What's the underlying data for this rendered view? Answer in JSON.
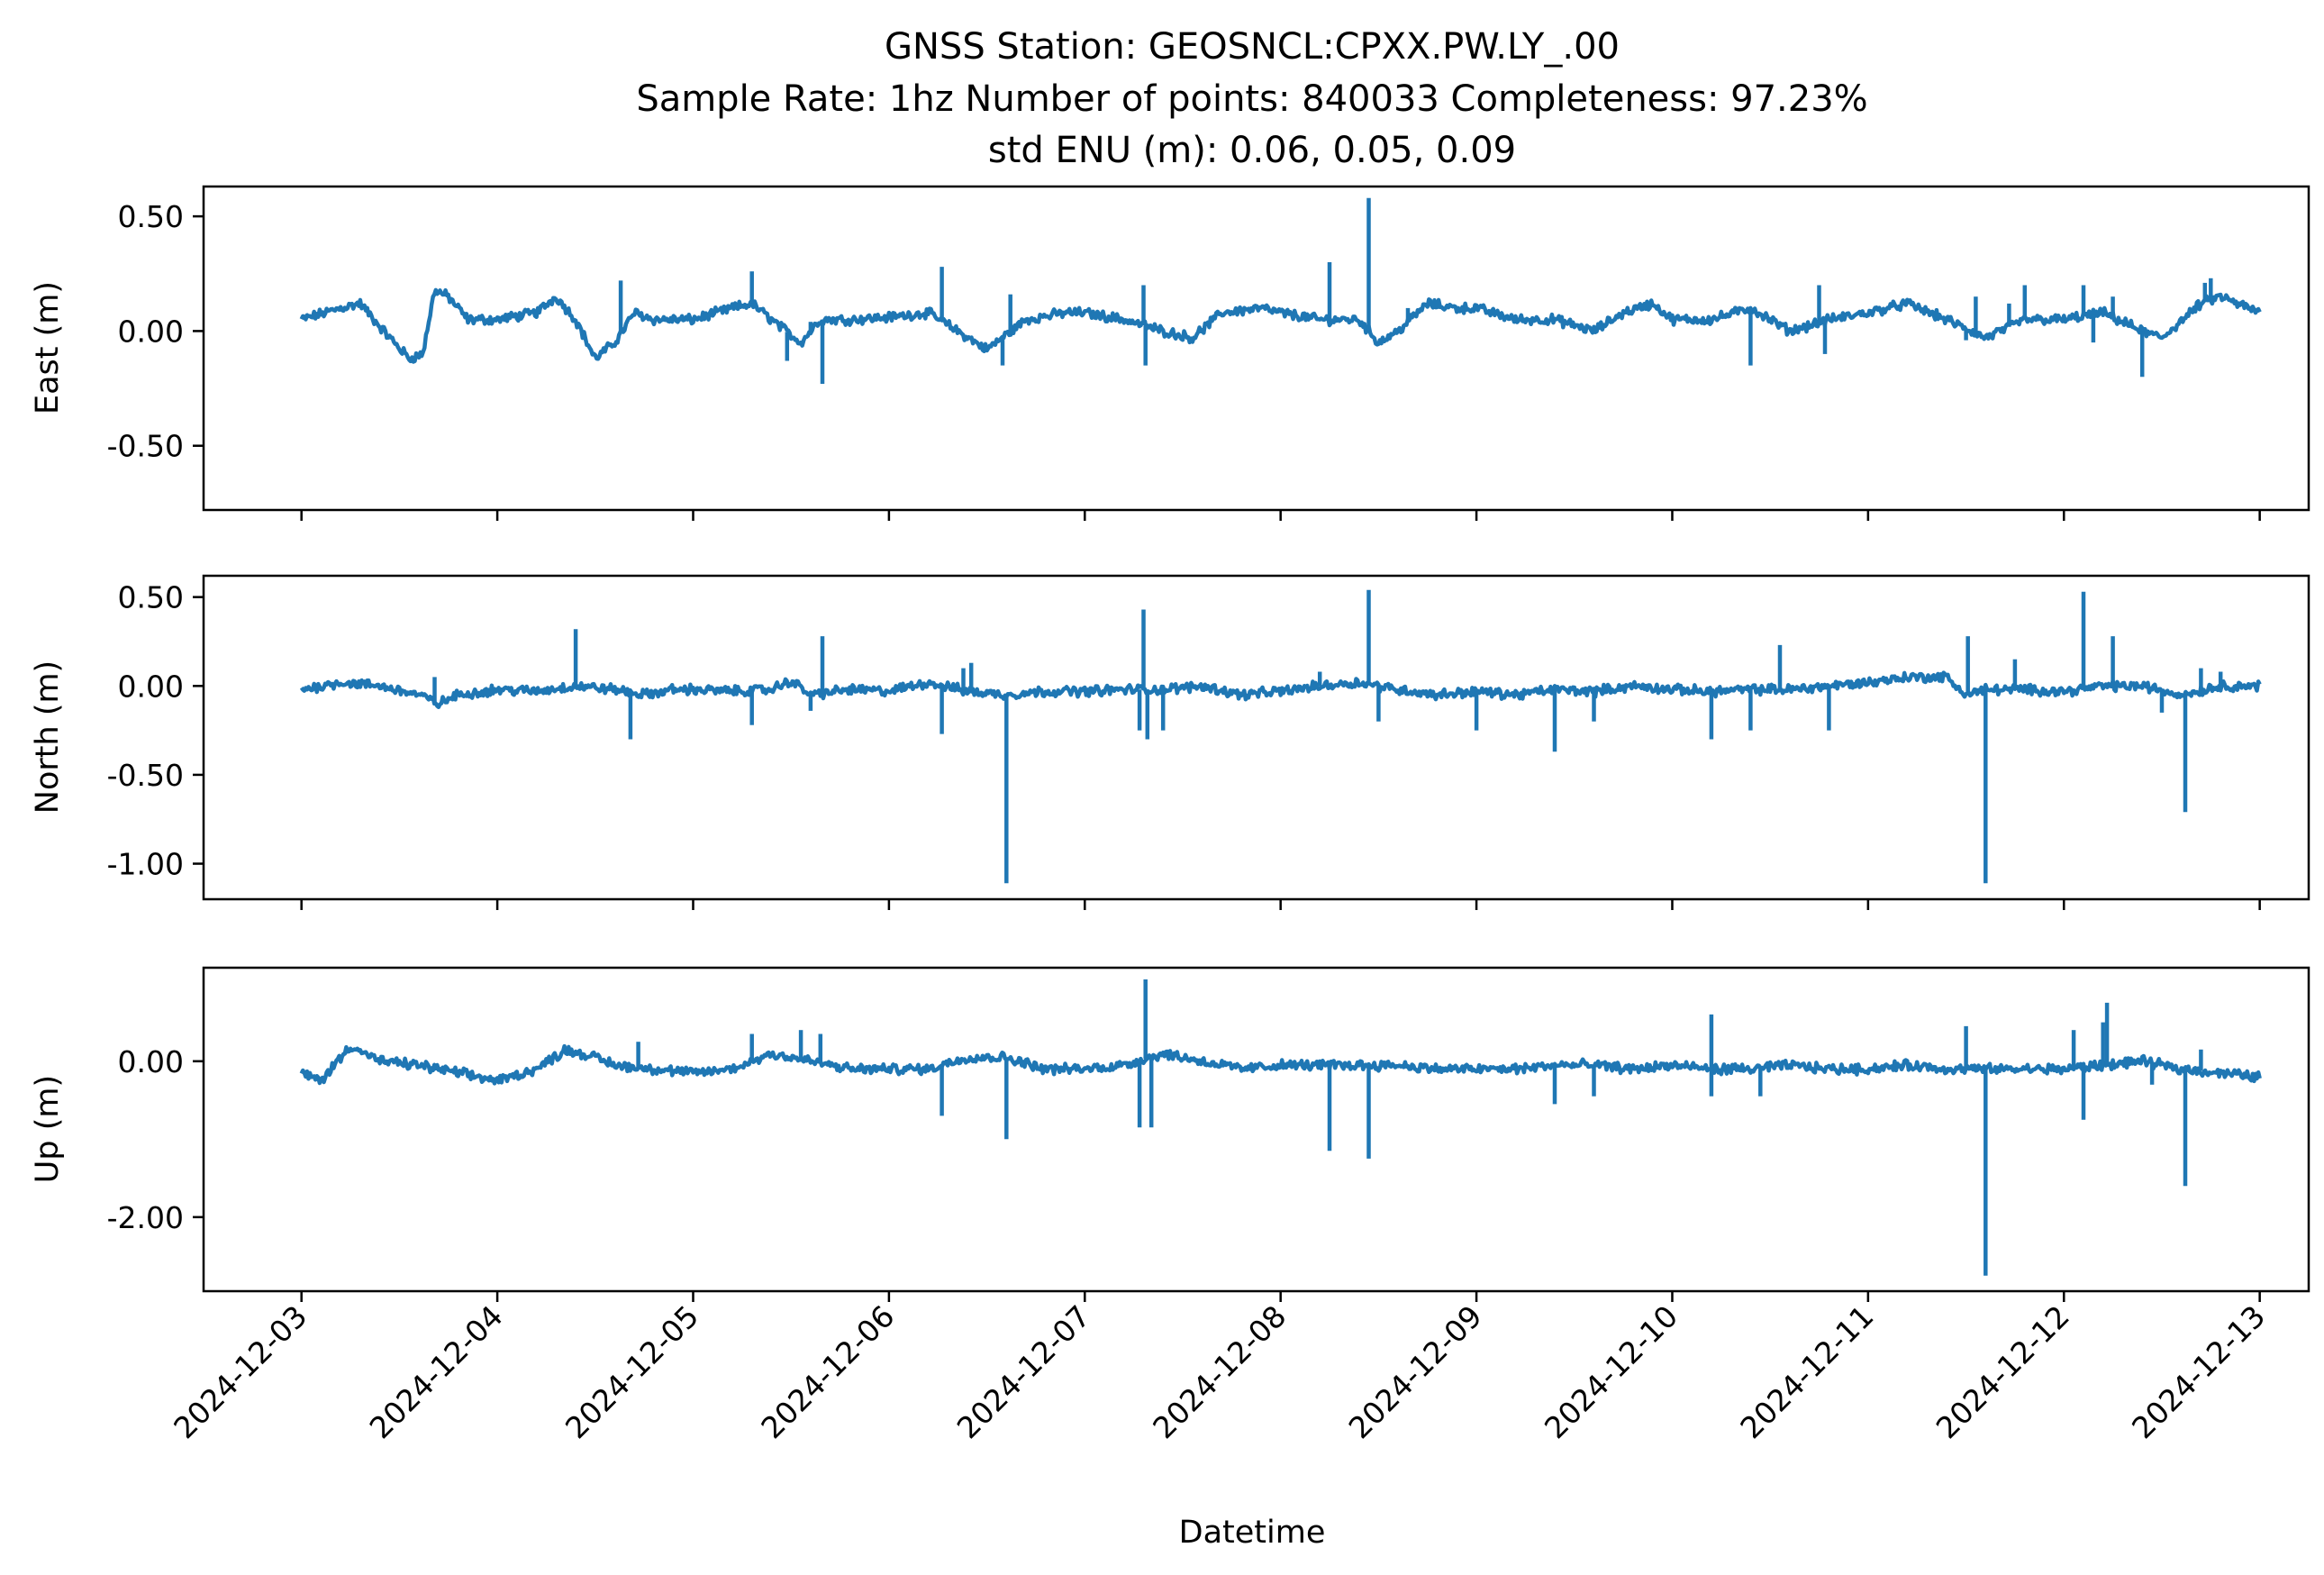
{
  "chart_data": {
    "type": "line",
    "title_lines": [
      "GNSS Station: GEOSNCL:CPXX.PW.LY_.00",
      "Sample Rate: 1hz   Number of points: 840033    Completeness:  97.23%",
      "std ENU (m):  0.06, 0.05, 0.09"
    ],
    "xlabel": "Datetime",
    "x_ticks": [
      "2024-12-03",
      "2024-12-04",
      "2024-12-05",
      "2024-12-06",
      "2024-12-07",
      "2024-12-08",
      "2024-12-09",
      "2024-12-10",
      "2024-12-11",
      "2024-12-12",
      "2024-12-13"
    ],
    "x_range_days": [
      "2024-12-02 12:00",
      "2024-12-13 06:00"
    ],
    "grid": false,
    "legend": "none",
    "line_color": "#1f77b4",
    "panels": [
      {
        "ylabel": "East (m)",
        "ylim": [
          -0.78,
          0.63
        ],
        "y_ticks": [
          0.5,
          0.0,
          -0.5
        ],
        "y_tick_labels": [
          "0.50",
          "0.00",
          "-0.50"
        ],
        "baseline": [
          [
            0.0,
            0.05
          ],
          [
            0.2,
            0.1
          ],
          [
            0.3,
            0.12
          ],
          [
            0.42,
            0.0
          ],
          [
            0.55,
            -0.12
          ],
          [
            0.62,
            -0.1
          ],
          [
            0.68,
            0.18
          ],
          [
            0.75,
            0.15
          ],
          [
            0.85,
            0.05
          ],
          [
            1.0,
            0.05
          ],
          [
            1.2,
            0.08
          ],
          [
            1.3,
            0.15
          ],
          [
            1.4,
            0.05
          ],
          [
            1.5,
            -0.12
          ],
          [
            1.6,
            -0.05
          ],
          [
            1.7,
            0.08
          ],
          [
            1.8,
            0.05
          ],
          [
            2.0,
            0.05
          ],
          [
            2.2,
            0.1
          ],
          [
            2.3,
            0.12
          ],
          [
            2.4,
            0.05
          ],
          [
            2.55,
            -0.05
          ],
          [
            2.65,
            0.05
          ],
          [
            2.8,
            0.05
          ],
          [
            3.0,
            0.06
          ],
          [
            3.2,
            0.08
          ],
          [
            3.35,
            0.0
          ],
          [
            3.5,
            -0.08
          ],
          [
            3.7,
            0.05
          ],
          [
            3.9,
            0.08
          ],
          [
            4.0,
            0.08
          ],
          [
            4.2,
            0.05
          ],
          [
            4.4,
            0.0
          ],
          [
            4.55,
            -0.03
          ],
          [
            4.7,
            0.08
          ],
          [
            4.9,
            0.1
          ],
          [
            5.0,
            0.08
          ],
          [
            5.2,
            0.05
          ],
          [
            5.4,
            0.05
          ],
          [
            5.5,
            -0.05
          ],
          [
            5.6,
            0.0
          ],
          [
            5.75,
            0.12
          ],
          [
            5.9,
            0.1
          ],
          [
            6.0,
            0.1
          ],
          [
            6.2,
            0.05
          ],
          [
            6.4,
            0.05
          ],
          [
            6.6,
            0.0
          ],
          [
            6.75,
            0.08
          ],
          [
            6.9,
            0.12
          ],
          [
            7.0,
            0.05
          ],
          [
            7.2,
            0.05
          ],
          [
            7.4,
            0.1
          ],
          [
            7.6,
            0.0
          ],
          [
            7.8,
            0.05
          ],
          [
            8.0,
            0.08
          ],
          [
            8.2,
            0.12
          ],
          [
            8.4,
            0.05
          ],
          [
            8.6,
            -0.03
          ],
          [
            8.8,
            0.05
          ],
          [
            9.0,
            0.05
          ],
          [
            9.2,
            0.08
          ],
          [
            9.4,
            0.0
          ],
          [
            9.5,
            -0.03
          ],
          [
            9.7,
            0.12
          ],
          [
            9.8,
            0.15
          ],
          [
            10.0,
            0.08
          ]
        ],
        "spikes": [
          [
            1.63,
            0.22
          ],
          [
            2.3,
            0.26
          ],
          [
            2.48,
            -0.13
          ],
          [
            2.6,
            0.04
          ],
          [
            2.66,
            -0.23
          ],
          [
            3.27,
            0.28
          ],
          [
            3.58,
            -0.15
          ],
          [
            3.62,
            0.16
          ],
          [
            4.3,
            0.2
          ],
          [
            4.31,
            -0.15
          ],
          [
            5.25,
            0.3
          ],
          [
            5.45,
            0.58
          ],
          [
            5.65,
            0.1
          ],
          [
            7.4,
            -0.15
          ],
          [
            7.75,
            0.2
          ],
          [
            7.78,
            -0.1
          ],
          [
            8.5,
            -0.04
          ],
          [
            8.55,
            0.15
          ],
          [
            8.72,
            0.12
          ],
          [
            8.8,
            0.2
          ],
          [
            9.1,
            0.2
          ],
          [
            9.15,
            -0.05
          ],
          [
            9.25,
            0.15
          ],
          [
            9.4,
            -0.2
          ],
          [
            9.43,
            0.0
          ],
          [
            9.72,
            0.21
          ],
          [
            9.75,
            0.23
          ]
        ]
      },
      {
        "ylabel": "North (m)",
        "ylim": [
          -1.2,
          0.62
        ],
        "y_ticks": [
          0.5,
          0.0,
          -0.5,
          -1.0
        ],
        "y_tick_labels": [
          "0.50",
          "0.00",
          "-0.50",
          "-1.00"
        ],
        "baseline": [
          [
            0.0,
            -0.02
          ],
          [
            0.2,
            0.02
          ],
          [
            0.4,
            0.0
          ],
          [
            0.6,
            -0.05
          ],
          [
            0.7,
            -0.1
          ],
          [
            0.8,
            -0.05
          ],
          [
            1.0,
            -0.02
          ],
          [
            1.2,
            -0.03
          ],
          [
            1.4,
            0.0
          ],
          [
            1.6,
            -0.02
          ],
          [
            1.75,
            -0.05
          ],
          [
            1.9,
            -0.02
          ],
          [
            2.0,
            -0.02
          ],
          [
            2.2,
            -0.03
          ],
          [
            2.4,
            -0.02
          ],
          [
            2.5,
            0.03
          ],
          [
            2.6,
            -0.05
          ],
          [
            2.8,
            -0.02
          ],
          [
            3.0,
            -0.03
          ],
          [
            3.2,
            0.02
          ],
          [
            3.4,
            -0.03
          ],
          [
            3.6,
            -0.05
          ],
          [
            3.8,
            -0.03
          ],
          [
            4.0,
            -0.03
          ],
          [
            4.2,
            -0.02
          ],
          [
            4.4,
            -0.02
          ],
          [
            4.6,
            0.0
          ],
          [
            4.8,
            -0.05
          ],
          [
            5.0,
            -0.03
          ],
          [
            5.2,
            0.0
          ],
          [
            5.4,
            0.02
          ],
          [
            5.6,
            -0.02
          ],
          [
            5.8,
            -0.05
          ],
          [
            6.0,
            -0.03
          ],
          [
            6.2,
            -0.05
          ],
          [
            6.4,
            -0.02
          ],
          [
            6.6,
            -0.03
          ],
          [
            6.8,
            0.0
          ],
          [
            7.0,
            -0.02
          ],
          [
            7.2,
            -0.03
          ],
          [
            7.4,
            -0.02
          ],
          [
            7.6,
            -0.02
          ],
          [
            7.8,
            0.0
          ],
          [
            8.0,
            0.02
          ],
          [
            8.2,
            0.05
          ],
          [
            8.4,
            0.05
          ],
          [
            8.5,
            -0.05
          ],
          [
            8.6,
            -0.02
          ],
          [
            8.8,
            -0.02
          ],
          [
            9.0,
            -0.03
          ],
          [
            9.2,
            0.0
          ],
          [
            9.4,
            0.0
          ],
          [
            9.6,
            -0.05
          ],
          [
            9.8,
            0.0
          ],
          [
            10.0,
            0.0
          ]
        ],
        "spikes": [
          [
            0.68,
            0.05
          ],
          [
            1.4,
            0.32
          ],
          [
            1.68,
            -0.3
          ],
          [
            2.3,
            -0.22
          ],
          [
            2.6,
            -0.14
          ],
          [
            2.66,
            0.28
          ],
          [
            3.27,
            -0.27
          ],
          [
            3.38,
            0.1
          ],
          [
            3.42,
            0.13
          ],
          [
            3.6,
            -1.11
          ],
          [
            4.28,
            -0.25
          ],
          [
            4.3,
            0.43
          ],
          [
            4.32,
            -0.3
          ],
          [
            4.4,
            -0.25
          ],
          [
            5.2,
            0.08
          ],
          [
            5.45,
            0.54
          ],
          [
            5.5,
            -0.2
          ],
          [
            6.0,
            -0.25
          ],
          [
            6.4,
            -0.37
          ],
          [
            6.6,
            -0.2
          ],
          [
            7.2,
            -0.3
          ],
          [
            7.4,
            -0.25
          ],
          [
            7.55,
            0.23
          ],
          [
            7.8,
            -0.25
          ],
          [
            8.51,
            0.28
          ],
          [
            8.6,
            -1.11
          ],
          [
            8.75,
            0.15
          ],
          [
            9.1,
            0.53
          ],
          [
            9.25,
            0.28
          ],
          [
            9.5,
            -0.15
          ],
          [
            9.62,
            -0.71
          ],
          [
            9.7,
            0.1
          ],
          [
            9.8,
            0.08
          ]
        ]
      },
      {
        "ylabel": "Up (m)",
        "ylim": [
          -2.95,
          1.2
        ],
        "y_ticks": [
          0.0,
          -2.0
        ],
        "y_tick_labels": [
          "0.00",
          "-2.00"
        ],
        "baseline": [
          [
            0.0,
            -0.15
          ],
          [
            0.1,
            -0.25
          ],
          [
            0.25,
            0.2
          ],
          [
            0.4,
            0.0
          ],
          [
            0.6,
            -0.05
          ],
          [
            0.8,
            -0.15
          ],
          [
            1.0,
            -0.25
          ],
          [
            1.2,
            -0.1
          ],
          [
            1.35,
            0.15
          ],
          [
            1.5,
            0.05
          ],
          [
            1.6,
            -0.05
          ],
          [
            1.8,
            -0.1
          ],
          [
            2.0,
            -0.15
          ],
          [
            2.2,
            -0.1
          ],
          [
            2.4,
            0.1
          ],
          [
            2.6,
            0.0
          ],
          [
            2.8,
            -0.1
          ],
          [
            3.0,
            -0.1
          ],
          [
            3.2,
            -0.1
          ],
          [
            3.4,
            0.05
          ],
          [
            3.6,
            0.05
          ],
          [
            3.8,
            -0.1
          ],
          [
            4.0,
            -0.1
          ],
          [
            4.2,
            -0.05
          ],
          [
            4.4,
            0.1
          ],
          [
            4.6,
            0.0
          ],
          [
            4.8,
            -0.1
          ],
          [
            5.0,
            -0.05
          ],
          [
            5.2,
            -0.05
          ],
          [
            5.4,
            -0.05
          ],
          [
            5.6,
            -0.05
          ],
          [
            5.8,
            -0.1
          ],
          [
            6.0,
            -0.1
          ],
          [
            6.2,
            -0.1
          ],
          [
            6.4,
            -0.05
          ],
          [
            6.6,
            -0.05
          ],
          [
            6.8,
            -0.1
          ],
          [
            7.0,
            -0.05
          ],
          [
            7.2,
            -0.1
          ],
          [
            7.4,
            -0.1
          ],
          [
            7.6,
            -0.05
          ],
          [
            7.8,
            -0.1
          ],
          [
            8.0,
            -0.1
          ],
          [
            8.2,
            -0.05
          ],
          [
            8.4,
            -0.1
          ],
          [
            8.6,
            -0.1
          ],
          [
            8.8,
            -0.1
          ],
          [
            9.0,
            -0.1
          ],
          [
            9.2,
            -0.05
          ],
          [
            9.4,
            0.0
          ],
          [
            9.6,
            -0.1
          ],
          [
            9.8,
            -0.15
          ],
          [
            10.0,
            -0.2
          ]
        ],
        "spikes": [
          [
            1.72,
            0.25
          ],
          [
            2.3,
            0.35
          ],
          [
            2.55,
            0.4
          ],
          [
            2.65,
            0.35
          ],
          [
            3.27,
            -0.7
          ],
          [
            3.6,
            -1.0
          ],
          [
            4.28,
            -0.85
          ],
          [
            4.31,
            1.05
          ],
          [
            4.34,
            -0.85
          ],
          [
            5.25,
            -1.15
          ],
          [
            5.45,
            -1.25
          ],
          [
            6.4,
            -0.55
          ],
          [
            6.6,
            -0.45
          ],
          [
            7.2,
            0.6
          ],
          [
            7.2,
            -0.45
          ],
          [
            7.45,
            -0.45
          ],
          [
            8.5,
            0.45
          ],
          [
            8.6,
            -2.75
          ],
          [
            9.05,
            0.4
          ],
          [
            9.1,
            -0.75
          ],
          [
            9.2,
            0.5
          ],
          [
            9.22,
            0.75
          ],
          [
            9.45,
            -0.3
          ],
          [
            9.62,
            -1.6
          ],
          [
            9.7,
            0.15
          ]
        ]
      }
    ]
  }
}
